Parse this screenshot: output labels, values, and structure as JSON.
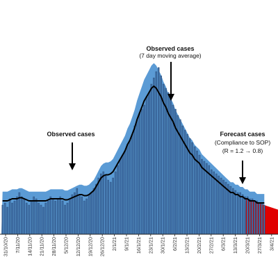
{
  "chart_data": {
    "type": "bar",
    "title": "",
    "xlabel": "",
    "ylabel": "",
    "legend": "none",
    "grid": false,
    "colors": {
      "bars": "#3f6fa8",
      "bar_stroke": "#1c3556",
      "spike_lines": "#555555",
      "band": "#5b9bd5",
      "forecast": "#e00000",
      "moving_average": "#000000",
      "axis": "#222222",
      "arrow": "#000000"
    },
    "x_tick_labels": [
      "31/10/20",
      "7/11/20",
      "14/11/20",
      "21/11/20",
      "28/11/20",
      "5/12/20",
      "12/12/20",
      "19/12/20",
      "26/12/20",
      "2/1/21",
      "9/1/21",
      "16/1/21",
      "23/1/21",
      "30/1/21",
      "6/2/21",
      "13/2/21",
      "20/2/21",
      "27/2/21",
      "6/3/21",
      "13/3/21",
      "20/3/21",
      "27/3/21",
      "3/4/21"
    ],
    "series": [
      {
        "name": "Observed cases",
        "role": "daily",
        "values": [
          14,
          15,
          13,
          17,
          15,
          16,
          18,
          20,
          18,
          17,
          15,
          14,
          16,
          18,
          17,
          15,
          14,
          13,
          15,
          16,
          18,
          17,
          16,
          17,
          18,
          16,
          14,
          15,
          17,
          19,
          20,
          22,
          19,
          18,
          16,
          17,
          19,
          20,
          22,
          24,
          27,
          29,
          30,
          28,
          26,
          25,
          27,
          30,
          33,
          36,
          38,
          40,
          43,
          45,
          48,
          52,
          55,
          58,
          60,
          62,
          66,
          68,
          72,
          75,
          78,
          80,
          76,
          72,
          70,
          68,
          65,
          62,
          60,
          57,
          55,
          52,
          50,
          48,
          46,
          44,
          42,
          40,
          38,
          36,
          35,
          34,
          33,
          31,
          30,
          29,
          28,
          27,
          26,
          25,
          24,
          23,
          22,
          21,
          20,
          20,
          19,
          18,
          18,
          17,
          17,
          16,
          16,
          15,
          15,
          14
        ]
      },
      {
        "name": "Observed cases (7 day moving average)",
        "role": "average",
        "values": [
          16,
          16,
          16,
          16.5,
          17,
          17,
          17,
          17.5,
          17.5,
          17,
          16.5,
          16,
          16,
          16,
          16,
          16,
          16,
          16,
          16,
          16.5,
          17,
          17,
          17,
          17,
          17,
          17,
          16.5,
          16.5,
          17,
          17.5,
          18,
          18.5,
          19,
          19,
          18.5,
          18.5,
          19,
          20,
          21,
          23,
          25,
          27,
          28,
          28.5,
          28.5,
          29,
          30,
          32,
          34,
          36,
          38,
          40,
          43,
          45,
          48,
          51,
          55,
          58,
          61,
          64,
          66,
          68,
          70,
          71,
          70,
          68,
          66,
          63,
          61,
          58,
          56,
          54,
          51,
          49,
          47,
          45,
          43,
          41,
          39,
          38,
          36,
          35,
          34,
          32,
          31,
          30,
          29,
          28,
          27,
          26,
          25,
          24,
          23,
          22,
          21,
          20,
          20,
          19,
          19,
          18,
          18,
          17,
          17,
          16,
          16,
          16,
          15,
          15,
          15,
          15
        ]
      },
      {
        "name": "Forecast cases",
        "scenario": "Compliance to SOP",
        "R": "1.2 → 0.8",
        "role": "forecast",
        "values": [
          15,
          14.6,
          14.2,
          13.8,
          13.4,
          13,
          12.6,
          12.2,
          11.8
        ]
      }
    ],
    "annotations": [
      {
        "title": "Observed cases",
        "subtitle": "(7 day moving average)"
      },
      {
        "title": "Observed cases",
        "subtitle": ""
      },
      {
        "title": "Forecast cases",
        "subtitle": "(Compliance to SOP)",
        "subtitle2": "(R = 1.2 → 0.8)"
      }
    ]
  }
}
